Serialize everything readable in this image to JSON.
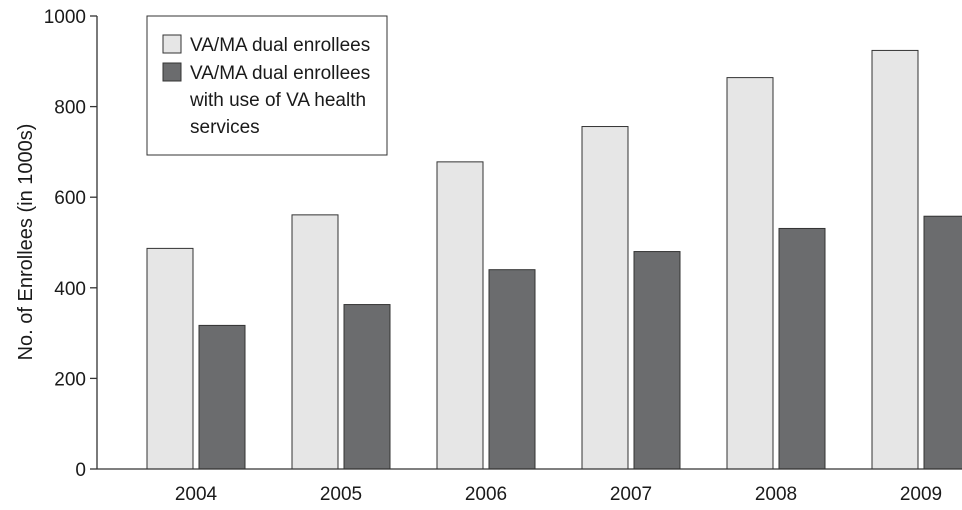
{
  "chart_data": {
    "type": "bar",
    "title": "",
    "xlabel": "",
    "ylabel": "No. of Enrollees (in 1000s)",
    "ylim": [
      0,
      1000
    ],
    "yticks": [
      0,
      200,
      400,
      600,
      800,
      1000
    ],
    "grid": false,
    "legend_position": "top-left",
    "categories": [
      "2004",
      "2005",
      "2006",
      "2007",
      "2008",
      "2009"
    ],
    "series": [
      {
        "name": "VA/MA dual enrollees",
        "color": "#e6e6e6",
        "values": [
          487,
          561,
          678,
          756,
          864,
          924
        ]
      },
      {
        "name_lines": [
          "VA/MA dual enrollees",
          "with use of VA health",
          "services"
        ],
        "color": "#6b6c6e",
        "values": [
          317,
          363,
          440,
          480,
          531,
          558
        ]
      }
    ]
  }
}
